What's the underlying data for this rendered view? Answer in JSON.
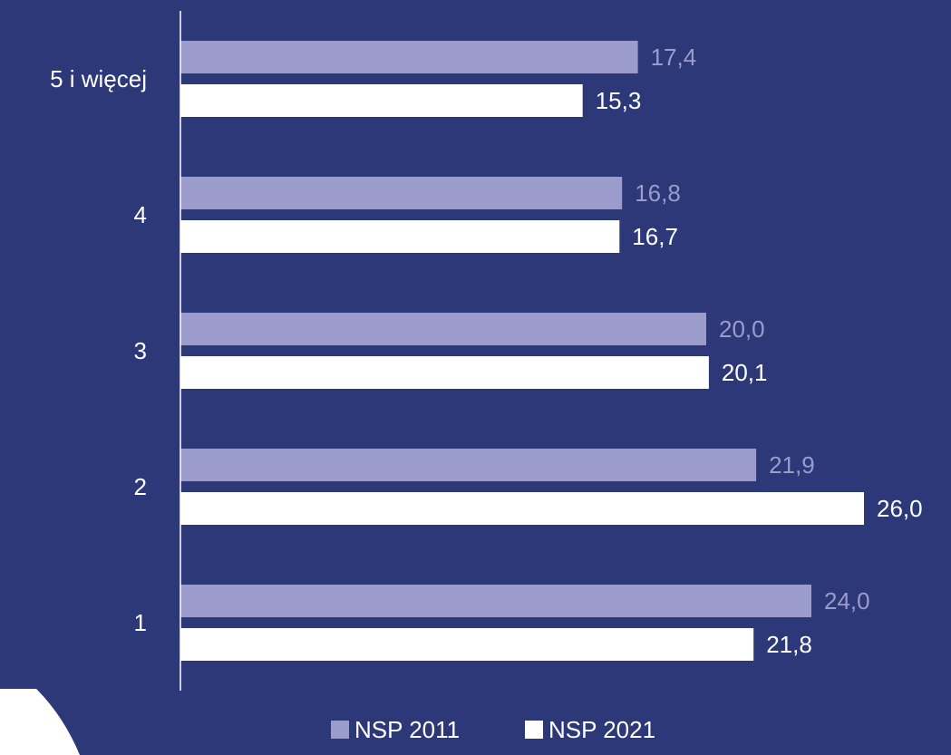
{
  "chart_data": {
    "type": "bar",
    "orientation": "horizontal",
    "title": "",
    "xlabel": "",
    "ylabel": "",
    "categories": [
      "5 i więcej",
      "4",
      "3",
      "2",
      "1"
    ],
    "series": [
      {
        "name": "NSP 2011",
        "values": [
          17.4,
          16.8,
          20.0,
          21.9,
          24.0
        ],
        "labels": [
          "17,4",
          "16,8",
          "20,0",
          "21,9",
          "24,0"
        ]
      },
      {
        "name": "NSP 2021",
        "values": [
          15.3,
          16.7,
          20.1,
          26.0,
          21.8
        ],
        "labels": [
          "15,3",
          "16,7",
          "20,1",
          "26,0",
          "21,8"
        ]
      }
    ],
    "xlim": [
      0,
      26.0
    ],
    "grid": false,
    "legend_position": "bottom"
  },
  "colors": {
    "background": "#2d3879",
    "series_2011": "#9b9bcc",
    "series_2021": "#ffffff",
    "label_2011": "#9b9bcc",
    "label_2021": "#ffffff",
    "axis": "#ffffff",
    "decor": "#ffffff"
  }
}
